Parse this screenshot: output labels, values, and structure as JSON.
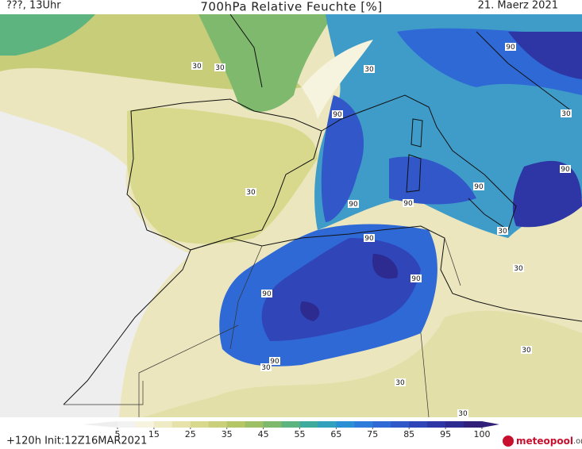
{
  "header": {
    "left": "???, 13Uhr",
    "title": "700hPa Relative Feuchte [%]",
    "date": "21. Maerz 2021"
  },
  "map": {
    "contour_labels": [
      "30",
      "30",
      "30",
      "30",
      "30",
      "30",
      "30",
      "30",
      "30",
      "30",
      "30",
      "90",
      "90",
      "90",
      "90",
      "90",
      "90",
      "90",
      "90",
      "90",
      "90"
    ]
  },
  "colorbar": {
    "ticks": [
      5,
      15,
      25,
      35,
      45,
      55,
      65,
      75,
      85,
      95,
      100
    ],
    "colors": [
      "#f2f2f2",
      "#f6f3de",
      "#efebc4",
      "#e6e2aa",
      "#d9d98e",
      "#c9cf7a",
      "#b5c667",
      "#9dbf66",
      "#7eb96d",
      "#5db47f",
      "#3fab9c",
      "#31a1bd",
      "#2b8fd4",
      "#2d7bda",
      "#2f69d6",
      "#3157c9",
      "#3045b8",
      "#2e36a5",
      "#2d2a90",
      "#30207a"
    ]
  },
  "footer": {
    "run": "+120h  Init:12Z16MAR2021",
    "logo": "meteopool",
    "logo_domain": ".org"
  }
}
